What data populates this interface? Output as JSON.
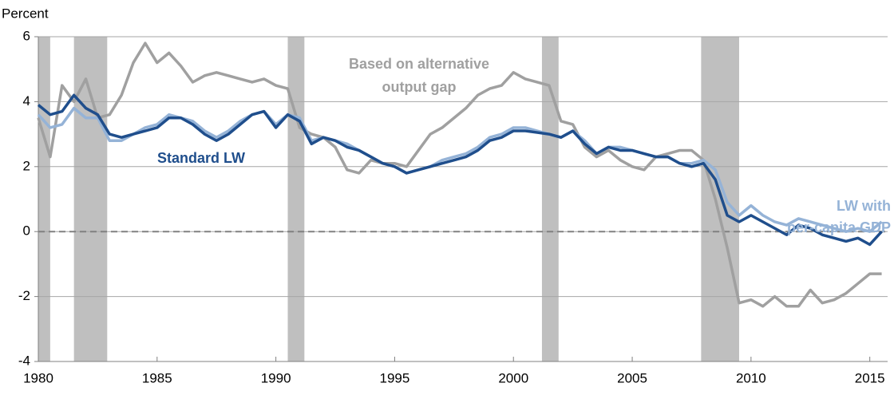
{
  "chart_data": {
    "type": "line",
    "y_axis_label": "Percent",
    "x": [
      1980,
      1980.5,
      1981,
      1981.5,
      1982,
      1982.5,
      1983,
      1983.5,
      1984,
      1984.5,
      1985,
      1985.5,
      1986,
      1986.5,
      1987,
      1987.5,
      1988,
      1988.5,
      1989,
      1989.5,
      1990,
      1990.5,
      1991,
      1991.5,
      1992,
      1992.5,
      1993,
      1993.5,
      1994,
      1994.5,
      1995,
      1995.5,
      1996,
      1996.5,
      1997,
      1997.5,
      1998,
      1998.5,
      1999,
      1999.5,
      2000,
      2000.5,
      2001,
      2001.5,
      2002,
      2002.5,
      2003,
      2003.5,
      2004,
      2004.5,
      2005,
      2005.5,
      2006,
      2006.5,
      2007,
      2007.5,
      2008,
      2008.5,
      2009,
      2009.5,
      2010,
      2010.5,
      2011,
      2011.5,
      2012,
      2012.5,
      2013,
      2013.5,
      2014,
      2014.5,
      2015,
      2015.5
    ],
    "series": [
      {
        "name": "Based on alternative output gap",
        "color": "#a0a0a0",
        "values": [
          3.5,
          2.3,
          4.5,
          4.0,
          4.7,
          3.5,
          3.6,
          4.2,
          5.2,
          5.8,
          5.2,
          5.5,
          5.1,
          4.6,
          4.8,
          4.9,
          4.8,
          4.7,
          4.6,
          4.7,
          4.5,
          4.4,
          3.2,
          3.0,
          2.9,
          2.6,
          1.9,
          1.8,
          2.2,
          2.1,
          2.1,
          2.0,
          2.5,
          3.0,
          3.2,
          3.5,
          3.8,
          4.2,
          4.4,
          4.5,
          4.9,
          4.7,
          4.6,
          4.5,
          3.4,
          3.3,
          2.6,
          2.3,
          2.5,
          2.2,
          2.0,
          1.9,
          2.3,
          2.4,
          2.5,
          2.5,
          2.2,
          1.0,
          -0.5,
          -2.2,
          -2.1,
          -2.3,
          -2.0,
          -2.3,
          -2.3,
          -1.8,
          -2.2,
          -2.1,
          -1.9,
          -1.6,
          -1.3,
          -1.3
        ]
      },
      {
        "name": "LW with per-capita GDP",
        "color": "#95b3d7",
        "values": [
          3.6,
          3.2,
          3.3,
          3.8,
          3.5,
          3.5,
          2.8,
          2.8,
          3.0,
          3.2,
          3.3,
          3.6,
          3.5,
          3.4,
          3.1,
          2.9,
          3.1,
          3.4,
          3.6,
          3.7,
          3.3,
          3.6,
          3.5,
          2.8,
          2.9,
          2.8,
          2.7,
          2.5,
          2.3,
          2.1,
          2.0,
          1.8,
          1.9,
          2.0,
          2.2,
          2.3,
          2.4,
          2.6,
          2.9,
          3.0,
          3.2,
          3.2,
          3.1,
          3.0,
          2.9,
          3.1,
          2.8,
          2.4,
          2.6,
          2.6,
          2.5,
          2.4,
          2.3,
          2.3,
          2.1,
          2.1,
          2.2,
          1.9,
          0.9,
          0.5,
          0.8,
          0.5,
          0.3,
          0.2,
          0.4,
          0.3,
          0.2,
          0.1,
          0.0,
          0.1,
          0.0,
          0.3
        ]
      },
      {
        "name": "Standard LW",
        "color": "#1f4e8c",
        "values": [
          3.9,
          3.6,
          3.7,
          4.2,
          3.8,
          3.6,
          3.0,
          2.9,
          3.0,
          3.1,
          3.2,
          3.5,
          3.5,
          3.3,
          3.0,
          2.8,
          3.0,
          3.3,
          3.6,
          3.7,
          3.2,
          3.6,
          3.4,
          2.7,
          2.9,
          2.8,
          2.6,
          2.5,
          2.3,
          2.1,
          2.0,
          1.8,
          1.9,
          2.0,
          2.1,
          2.2,
          2.3,
          2.5,
          2.8,
          2.9,
          3.1,
          3.1,
          3.05,
          3.0,
          2.9,
          3.1,
          2.7,
          2.4,
          2.6,
          2.5,
          2.5,
          2.4,
          2.3,
          2.3,
          2.1,
          2.0,
          2.1,
          1.6,
          0.5,
          0.3,
          0.5,
          0.3,
          0.1,
          -0.1,
          0.2,
          0.1,
          -0.1,
          -0.2,
          -0.3,
          -0.2,
          -0.4,
          0.0
        ]
      }
    ],
    "recessions": [
      [
        1980.0,
        1980.5
      ],
      [
        1981.5,
        1982.9
      ],
      [
        1990.5,
        1991.2
      ],
      [
        2001.2,
        2001.9
      ],
      [
        2007.9,
        2009.5
      ]
    ],
    "recession_color": "#bfbfbf",
    "reference_line": 0,
    "xlim": [
      1980,
      2015.75
    ],
    "xticks": [
      1980,
      1985,
      1990,
      1995,
      2000,
      2005,
      2010,
      2015
    ],
    "ylim": [
      -4,
      6
    ],
    "yticks": [
      -4,
      -2,
      0,
      2,
      4,
      6
    ],
    "grid": true,
    "annotations": [
      {
        "lines": [
          "Based on alternative",
          "output gap"
        ],
        "color": "#a0a0a0"
      },
      {
        "lines": [
          "Standard LW"
        ],
        "color": "#1f4e8c"
      },
      {
        "lines": [
          "LW with",
          "per-capita GDP"
        ],
        "color": "#95b3d7"
      }
    ]
  }
}
